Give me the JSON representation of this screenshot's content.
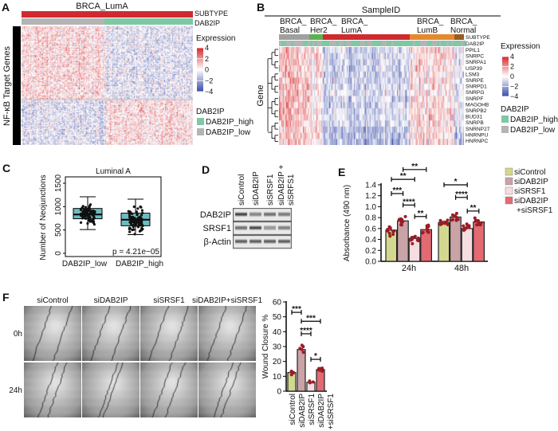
{
  "colors": {
    "expr_high": "#d7262b",
    "expr_mid": "#ffffff",
    "expr_low": "#3a4ba8",
    "dab2ip_high": "#7ec8a4",
    "dab2ip_low": "#b4b4b4",
    "basal": "#a0a0a0",
    "her2": "#5db14f",
    "luma": "#d02a30",
    "lumb": "#e5892f",
    "normal": "#9a5a23",
    "box_fill": "#6bbcc0",
    "dot": "#9c1c24"
  },
  "panels": {
    "a": "A",
    "b": "B",
    "c": "C",
    "d": "D",
    "e": "E",
    "f": "F"
  },
  "heat_a": {
    "title": "BRCA_LumA",
    "ylabel": "NF-κB Target Genes",
    "track_subtype": "SUBTYPE",
    "track_dab2ip": "DAB2IP",
    "legend_title": "Expression",
    "ticks": [
      "4",
      "2",
      "0",
      "−2",
      "−4"
    ],
    "group_title": "DAB2IP",
    "groups": [
      "DAB2IP_high",
      "DAB2IP_low"
    ]
  },
  "heat_b": {
    "title": "SampleID",
    "subtypes": [
      {
        "l1": "BRCA_",
        "l2": "Basal"
      },
      {
        "l1": "BRCA_",
        "l2": "Her2"
      },
      {
        "l1": "BRCA_",
        "l2": "LumA"
      },
      {
        "l1": "BRCA_",
        "l2": "LumB"
      },
      {
        "l1": "BRCA_",
        "l2": "Normal"
      }
    ],
    "ylabel": "Gene",
    "genes": [
      "PPIL1",
      "SNRPC",
      "SNRPA1",
      "USP39",
      "LSM3",
      "SNRPE",
      "SNRPD1",
      "SNRPG",
      "SNRPF",
      "MAGOHB",
      "SNRPB2",
      "BUD31",
      "SNRPB",
      "SNRNP27",
      "HNRNPU",
      "HNRNPC"
    ],
    "track_subtype": "SUBTYPE",
    "track_dab2ip": "DAB2IP",
    "legend_title": "Expression",
    "ticks": [
      "4",
      "2",
      "0",
      "−2",
      "−4"
    ],
    "group_title": "DAB2IP",
    "groups": [
      "DAB2IP_high",
      "DAB2IP_low"
    ]
  },
  "blot": {
    "lanes": [
      "siControl",
      "siDAB2IP",
      "siSRSF1",
      "siDAB2IP +",
      "siSRFS1"
    ],
    "rows": [
      "DAB2IP",
      "SRSF1",
      "β-Actin"
    ]
  },
  "wound": {
    "columns": [
      "siControl",
      "siDAB2IP",
      "siSRSF1",
      "siDAB2IP+siSRSF1"
    ],
    "rows": [
      "0h",
      "24h"
    ]
  },
  "chart_data": [
    {
      "panel": "A",
      "type": "heatmap",
      "title": "BRCA_LumA",
      "ylabel": "NF-κB Target Genes",
      "color_range": [
        -4,
        4
      ],
      "column_groups": [
        "DAB2IP_low",
        "DAB2IP_high"
      ],
      "pattern": "upper gene cluster higher in DAB2IP_low, lower cluster higher in DAB2IP_high"
    },
    {
      "panel": "B",
      "type": "heatmap",
      "title": "SampleID",
      "ylabel": "Gene",
      "color_range": [
        -4,
        4
      ],
      "column_groups": [
        "Basal",
        "Her2",
        "LumA",
        "LumB",
        "Normal"
      ]
    },
    {
      "panel": "C",
      "type": "box",
      "title": "Luminal A",
      "ylabel": "Number of Neojunctions",
      "categories": [
        "DAB2IP_low",
        "DAB2IP_high"
      ],
      "ylim": [
        0,
        1500
      ],
      "yticks": [
        0,
        500,
        1000,
        1500
      ],
      "boxes": [
        {
          "whisker_low": 510,
          "q1": 740,
          "median": 830,
          "q3": 960,
          "whisker_high": 1210
        },
        {
          "whisker_low": 400,
          "q1": 590,
          "median": 720,
          "q3": 860,
          "whisker_high": 1160
        }
      ],
      "annotation": "p = 4.21e−05"
    },
    {
      "panel": "E",
      "type": "bar",
      "ylabel": "Absorbance (490 nm)",
      "categories": [
        "24h",
        "48h"
      ],
      "ylim": [
        0,
        1.4
      ],
      "yticks": [
        "0.0",
        "0.2",
        "0.4",
        "0.6",
        "0.8",
        "1.0",
        "1.2",
        "1.4"
      ],
      "series": [
        {
          "name": "siControl",
          "values": [
            0.57,
            0.71
          ],
          "color": "#d3d88f"
        },
        {
          "name": "siDAB2IP",
          "values": [
            0.74,
            0.81
          ],
          "color": "#c9a3a6"
        },
        {
          "name": "siSRSF1",
          "values": [
            0.42,
            0.6
          ],
          "color": "#f6dde0"
        },
        {
          "name": "siDAB2IP\n+siSRSF1",
          "values": [
            0.58,
            0.72
          ],
          "color": "#e36a72"
        }
      ],
      "legend": [
        "siControl",
        "siDAB2IP",
        "siSRSF1",
        "siDAB2IP",
        "+siSRSF1"
      ],
      "legend_position": "right",
      "brackets": [
        {
          "a": 1,
          "b": 3,
          "y": 1.68,
          "label": "**"
        },
        {
          "a": 0,
          "b": 2,
          "y": 1.5,
          "label": "**"
        },
        {
          "a": 0,
          "b": 1,
          "y": 1.24,
          "label": "***"
        },
        {
          "a": 1,
          "b": 2,
          "y": 1.03,
          "label": "****"
        },
        {
          "a": 2,
          "b": 3,
          "y": 0.82,
          "label": "**"
        },
        {
          "a": 4,
          "b": 6,
          "y": 1.4,
          "label": "*"
        },
        {
          "a": 5,
          "b": 6,
          "y": 1.17,
          "label": "****"
        },
        {
          "a": 6,
          "b": 7,
          "y": 0.92,
          "label": "**"
        }
      ]
    },
    {
      "panel": "F",
      "type": "bar",
      "ylabel": "Wound Closure %",
      "categories": [
        "siControl",
        "siDAB2IP",
        "siSRSF1",
        "siDAB2IP\n+siSRSF1"
      ],
      "xticklabels": [
        "siControl",
        "siDAB2IP",
        "siSRSF1",
        "siDAB2IP",
        "+siSRSF1"
      ],
      "ylim": [
        0,
        60
      ],
      "yticks": [
        "0",
        "10",
        "20",
        "30",
        "40",
        "50",
        "60"
      ],
      "values": [
        12.5,
        28,
        6,
        14.5
      ],
      "colors": [
        "#d3d88f",
        "#c9a3a6",
        "#f6dde0",
        "#e36a72"
      ],
      "brackets": [
        {
          "a": 0,
          "b": 1,
          "y": 53,
          "label": "***"
        },
        {
          "a": 1,
          "b": 3,
          "y": 47,
          "label": "***"
        },
        {
          "a": 1,
          "b": 2,
          "y": 38.6,
          "label": "****"
        },
        {
          "a": 2,
          "b": 3,
          "y": 21.4,
          "label": "*"
        }
      ]
    }
  ]
}
